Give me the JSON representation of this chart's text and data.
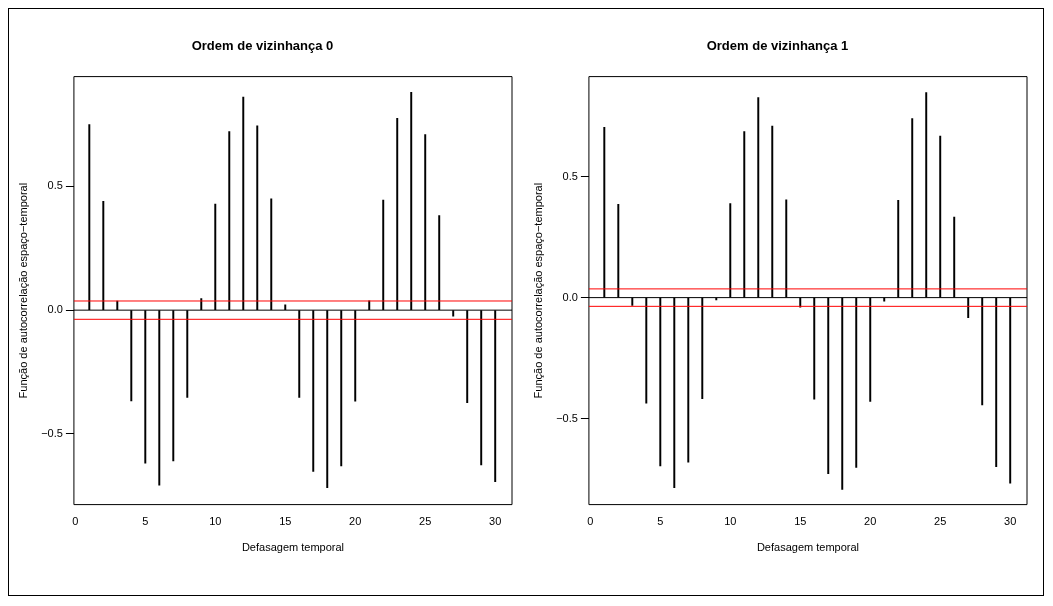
{
  "chart_data": [
    {
      "type": "bar",
      "title": "Ordem de vizinhança 0",
      "xlabel": "Defasagem temporal",
      "ylabel": "Função de autocorrelação espaço−temporal",
      "color": "#000000",
      "x": [
        1,
        2,
        3,
        4,
        5,
        6,
        7,
        8,
        9,
        10,
        11,
        12,
        13,
        14,
        15,
        16,
        17,
        18,
        19,
        20,
        21,
        22,
        23,
        24,
        25,
        26,
        27,
        28,
        29,
        30
      ],
      "values": [
        0.75,
        0.44,
        0.037,
        -0.367,
        -0.619,
        -0.707,
        -0.609,
        -0.353,
        0.047,
        0.429,
        0.722,
        0.861,
        0.745,
        0.45,
        0.021,
        -0.353,
        -0.652,
        -0.718,
        -0.63,
        -0.368,
        0.038,
        0.445,
        0.775,
        0.88,
        0.71,
        0.382,
        -0.024,
        -0.374,
        -0.626,
        -0.693
      ],
      "xlim": [
        -0.1,
        31.2
      ],
      "xticks": [
        0,
        5,
        10,
        15,
        20,
        25,
        30
      ],
      "ylim": [
        -0.786,
        0.944
      ],
      "yticks": [
        {
          "value": -0.5,
          "label": "−0.5"
        },
        {
          "value": 0,
          "label": "0.0"
        },
        {
          "value": 0.5,
          "label": "0.5"
        }
      ],
      "ref_lines": [
        {
          "axis": "y",
          "value": 0,
          "color": "#000000"
        },
        {
          "axis": "y",
          "value": 0.037,
          "color": "#ff0000"
        },
        {
          "axis": "y",
          "value": -0.037,
          "color": "#ff0000"
        }
      ],
      "grid": false,
      "legend": false
    },
    {
      "type": "bar",
      "title": "Ordem de vizinhança 1",
      "xlabel": "Defasagem temporal",
      "ylabel": "Função de autocorrelação espaço−temporal",
      "color": "#000000",
      "x": [
        1,
        2,
        3,
        4,
        5,
        6,
        7,
        8,
        9,
        10,
        11,
        12,
        13,
        14,
        15,
        16,
        17,
        18,
        19,
        20,
        21,
        22,
        23,
        24,
        25,
        26,
        27,
        28,
        29,
        30
      ],
      "values": [
        0.703,
        0.385,
        -0.032,
        -0.436,
        -0.695,
        -0.785,
        -0.68,
        -0.417,
        -0.01,
        0.388,
        0.686,
        0.826,
        0.709,
        0.404,
        -0.039,
        -0.419,
        -0.727,
        -0.792,
        -0.701,
        -0.429,
        -0.015,
        0.402,
        0.74,
        0.847,
        0.667,
        0.333,
        -0.083,
        -0.443,
        -0.698,
        -0.766
      ],
      "xlim": [
        -0.1,
        31.2
      ],
      "xticks": [
        0,
        5,
        10,
        15,
        20,
        25,
        30
      ],
      "ylim": [
        -0.855,
        0.913
      ],
      "yticks": [
        {
          "value": -0.5,
          "label": "−0.5"
        },
        {
          "value": 0,
          "label": "0.0"
        },
        {
          "value": 0.5,
          "label": "0.5"
        }
      ],
      "ref_lines": [
        {
          "axis": "y",
          "value": 0,
          "color": "#000000"
        },
        {
          "axis": "y",
          "value": 0.036,
          "color": "#ff0000"
        },
        {
          "axis": "y",
          "value": -0.036,
          "color": "#ff0000"
        }
      ],
      "grid": false,
      "legend": false
    }
  ]
}
